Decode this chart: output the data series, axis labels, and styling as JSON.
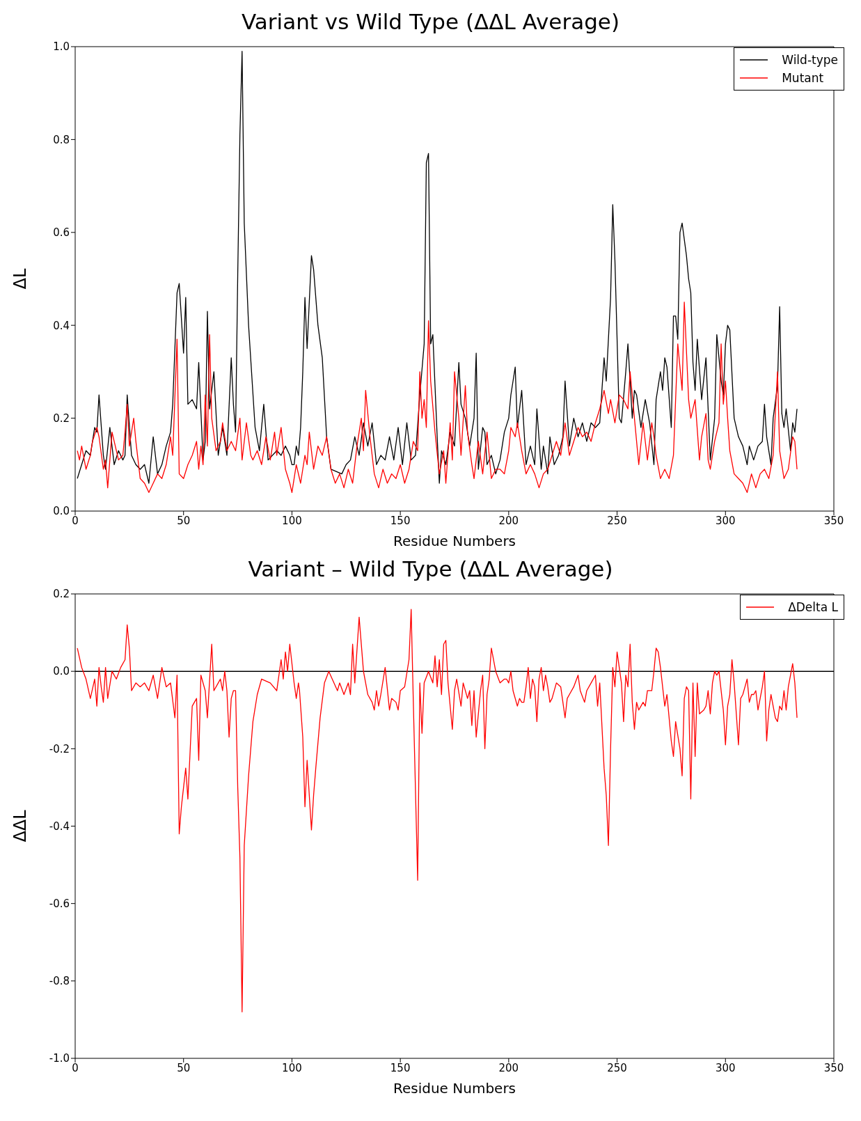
{
  "chart_data": [
    {
      "type": "line",
      "title": "Variant vs Wild Type (ΔΔL Average)",
      "xlabel": "Residue Numbers",
      "ylabel": "ΔL",
      "legend": "top right",
      "xlim": [
        0,
        350
      ],
      "xticks": [
        0,
        50,
        100,
        150,
        200,
        250,
        300,
        350
      ],
      "ylim": [
        0,
        1
      ],
      "yticks": [
        {
          "value": 0,
          "label": "0.0"
        },
        0.2,
        0.4,
        0.6,
        0.8,
        {
          "value": 1,
          "label": "1.0"
        }
      ],
      "series": [
        {
          "name": "Wild-type",
          "color": "#000000",
          "x": [
            1,
            3,
            5,
            7,
            9,
            10,
            11,
            13,
            14,
            16,
            18,
            20,
            22,
            23,
            24,
            26,
            28,
            30,
            32,
            34,
            36,
            38,
            40,
            42,
            44,
            45,
            47,
            48,
            50,
            51,
            52,
            54,
            56,
            57,
            59,
            60,
            61,
            62,
            64,
            66,
            68,
            70,
            72,
            73,
            74,
            75,
            76,
            77,
            78,
            80,
            83,
            85,
            87,
            89,
            93,
            95,
            97,
            99,
            100,
            101,
            102,
            103,
            104,
            105,
            106,
            107,
            109,
            110,
            112,
            114,
            116,
            118,
            123,
            125,
            127,
            129,
            131,
            133,
            135,
            137,
            139,
            141,
            143,
            145,
            147,
            149,
            151,
            153,
            155,
            157,
            159,
            161,
            162,
            163,
            164,
            165,
            167,
            168,
            169,
            171,
            173,
            175,
            177,
            178,
            180,
            182,
            184,
            185,
            186,
            188,
            189,
            190,
            192,
            194,
            196,
            198,
            200,
            201,
            203,
            204,
            206,
            208,
            210,
            212,
            213,
            215,
            216,
            218,
            219,
            221,
            223,
            225,
            226,
            228,
            230,
            232,
            234,
            236,
            238,
            240,
            242,
            244,
            245,
            247,
            248,
            249,
            251,
            252,
            254,
            255,
            257,
            258,
            259,
            261,
            263,
            265,
            267,
            268,
            270,
            271,
            272,
            273,
            275,
            276,
            277,
            278,
            279,
            280,
            282,
            283,
            284,
            285,
            286,
            287,
            289,
            291,
            293,
            295,
            296,
            298,
            299,
            300,
            301,
            302,
            304,
            306,
            308,
            309,
            310,
            311,
            313,
            315,
            317,
            318,
            319,
            321,
            322,
            324,
            325,
            326,
            327,
            328,
            330,
            331,
            332,
            333
          ],
          "values": [
            0.07,
            0.1,
            0.13,
            0.12,
            0.18,
            0.17,
            0.25,
            0.12,
            0.09,
            0.18,
            0.1,
            0.13,
            0.11,
            0.12,
            0.25,
            0.12,
            0.1,
            0.09,
            0.1,
            0.06,
            0.16,
            0.08,
            0.1,
            0.14,
            0.17,
            0.23,
            0.47,
            0.49,
            0.34,
            0.46,
            0.23,
            0.24,
            0.22,
            0.32,
            0.11,
            0.15,
            0.43,
            0.22,
            0.3,
            0.12,
            0.18,
            0.12,
            0.33,
            0.23,
            0.17,
            0.51,
            0.81,
            0.99,
            0.62,
            0.4,
            0.18,
            0.13,
            0.23,
            0.11,
            0.13,
            0.12,
            0.14,
            0.12,
            0.1,
            0.1,
            0.14,
            0.12,
            0.18,
            0.3,
            0.46,
            0.35,
            0.55,
            0.52,
            0.4,
            0.33,
            0.16,
            0.09,
            0.08,
            0.1,
            0.11,
            0.16,
            0.12,
            0.19,
            0.14,
            0.19,
            0.1,
            0.12,
            0.11,
            0.16,
            0.11,
            0.18,
            0.1,
            0.19,
            0.11,
            0.12,
            0.25,
            0.36,
            0.75,
            0.77,
            0.36,
            0.38,
            0.16,
            0.06,
            0.13,
            0.1,
            0.17,
            0.14,
            0.32,
            0.23,
            0.2,
            0.14,
            0.2,
            0.34,
            0.09,
            0.18,
            0.17,
            0.1,
            0.12,
            0.08,
            0.11,
            0.17,
            0.2,
            0.25,
            0.31,
            0.18,
            0.26,
            0.1,
            0.14,
            0.1,
            0.22,
            0.09,
            0.14,
            0.08,
            0.16,
            0.1,
            0.12,
            0.16,
            0.28,
            0.14,
            0.2,
            0.16,
            0.19,
            0.15,
            0.19,
            0.18,
            0.19,
            0.33,
            0.28,
            0.46,
            0.66,
            0.54,
            0.2,
            0.19,
            0.3,
            0.36,
            0.2,
            0.26,
            0.25,
            0.18,
            0.24,
            0.19,
            0.1,
            0.24,
            0.3,
            0.26,
            0.33,
            0.31,
            0.18,
            0.42,
            0.42,
            0.37,
            0.6,
            0.62,
            0.55,
            0.5,
            0.47,
            0.32,
            0.26,
            0.37,
            0.24,
            0.33,
            0.11,
            0.2,
            0.38,
            0.28,
            0.25,
            0.36,
            0.4,
            0.39,
            0.2,
            0.16,
            0.14,
            0.12,
            0.1,
            0.14,
            0.11,
            0.14,
            0.15,
            0.23,
            0.16,
            0.1,
            0.2,
            0.27,
            0.44,
            0.21,
            0.18,
            0.22,
            0.13,
            0.19,
            0.17,
            0.22
          ]
        },
        {
          "name": "Mutant",
          "color": "#ff0000",
          "x": [
            1,
            2,
            3,
            5,
            7,
            8,
            10,
            11,
            13,
            14,
            15,
            17,
            18,
            20,
            22,
            23,
            24,
            25,
            27,
            28,
            30,
            32,
            34,
            36,
            38,
            40,
            42,
            44,
            45,
            47,
            48,
            50,
            52,
            54,
            56,
            57,
            58,
            59,
            60,
            61,
            62,
            63,
            65,
            67,
            68,
            70,
            72,
            74,
            76,
            77,
            79,
            81,
            82,
            84,
            86,
            88,
            90,
            92,
            93,
            95,
            97,
            99,
            100,
            102,
            104,
            106,
            107,
            108,
            110,
            112,
            114,
            116,
            118,
            120,
            122,
            124,
            126,
            128,
            130,
            132,
            133,
            134,
            136,
            138,
            140,
            142,
            144,
            146,
            148,
            150,
            152,
            154,
            156,
            158,
            159,
            160,
            161,
            162,
            163,
            164,
            166,
            168,
            170,
            171,
            173,
            174,
            175,
            177,
            178,
            180,
            181,
            183,
            184,
            186,
            188,
            190,
            192,
            194,
            196,
            198,
            200,
            201,
            203,
            204,
            206,
            208,
            210,
            212,
            214,
            216,
            218,
            220,
            222,
            224,
            226,
            228,
            230,
            232,
            234,
            236,
            238,
            240,
            242,
            244,
            246,
            247,
            249,
            251,
            253,
            255,
            256,
            258,
            260,
            262,
            264,
            266,
            267,
            268,
            270,
            272,
            274,
            276,
            278,
            280,
            281,
            283,
            284,
            286,
            288,
            289,
            291,
            292,
            293,
            295,
            297,
            298,
            299,
            300,
            301,
            302,
            304,
            306,
            308,
            310,
            312,
            314,
            316,
            318,
            320,
            322,
            324,
            325,
            327,
            329,
            331,
            332,
            333
          ],
          "values": [
            0.13,
            0.11,
            0.14,
            0.09,
            0.12,
            0.15,
            0.18,
            0.16,
            0.09,
            0.11,
            0.05,
            0.17,
            0.15,
            0.11,
            0.12,
            0.17,
            0.23,
            0.14,
            0.2,
            0.15,
            0.07,
            0.06,
            0.04,
            0.06,
            0.08,
            0.07,
            0.1,
            0.16,
            0.12,
            0.37,
            0.08,
            0.07,
            0.1,
            0.12,
            0.15,
            0.09,
            0.14,
            0.1,
            0.25,
            0.14,
            0.38,
            0.2,
            0.13,
            0.15,
            0.19,
            0.13,
            0.15,
            0.13,
            0.2,
            0.11,
            0.19,
            0.12,
            0.11,
            0.13,
            0.1,
            0.16,
            0.11,
            0.17,
            0.12,
            0.18,
            0.09,
            0.06,
            0.04,
            0.1,
            0.06,
            0.12,
            0.1,
            0.17,
            0.09,
            0.14,
            0.12,
            0.16,
            0.09,
            0.06,
            0.08,
            0.05,
            0.09,
            0.06,
            0.14,
            0.2,
            0.13,
            0.26,
            0.16,
            0.08,
            0.05,
            0.09,
            0.06,
            0.08,
            0.07,
            0.1,
            0.06,
            0.09,
            0.15,
            0.13,
            0.3,
            0.2,
            0.24,
            0.18,
            0.41,
            0.28,
            0.17,
            0.08,
            0.13,
            0.06,
            0.19,
            0.11,
            0.3,
            0.2,
            0.12,
            0.27,
            0.17,
            0.1,
            0.07,
            0.15,
            0.08,
            0.17,
            0.07,
            0.09,
            0.09,
            0.08,
            0.13,
            0.18,
            0.16,
            0.19,
            0.13,
            0.08,
            0.1,
            0.08,
            0.05,
            0.08,
            0.09,
            0.12,
            0.15,
            0.12,
            0.19,
            0.12,
            0.15,
            0.18,
            0.16,
            0.17,
            0.15,
            0.19,
            0.22,
            0.26,
            0.21,
            0.24,
            0.19,
            0.25,
            0.24,
            0.22,
            0.3,
            0.2,
            0.1,
            0.19,
            0.11,
            0.19,
            0.16,
            0.12,
            0.07,
            0.09,
            0.07,
            0.12,
            0.36,
            0.26,
            0.45,
            0.24,
            0.2,
            0.24,
            0.11,
            0.16,
            0.21,
            0.11,
            0.09,
            0.15,
            0.19,
            0.36,
            0.23,
            0.28,
            0.2,
            0.13,
            0.08,
            0.07,
            0.06,
            0.04,
            0.08,
            0.05,
            0.08,
            0.09,
            0.07,
            0.12,
            0.3,
            0.13,
            0.07,
            0.09,
            0.16,
            0.15,
            0.09
          ]
        }
      ]
    },
    {
      "type": "line",
      "title": "Variant – Wild Type (ΔΔL Average)",
      "xlabel": "Residue Numbers",
      "ylabel": "ΔΔL",
      "legend": "top right",
      "xlim": [
        0,
        350
      ],
      "xticks": [
        0,
        50,
        100,
        150,
        200,
        250,
        300,
        350
      ],
      "ylim": [
        -1,
        0.2
      ],
      "yticks": [
        {
          "value": -1,
          "label": "-1.0"
        },
        -0.8,
        -0.6,
        -0.4,
        -0.2,
        {
          "value": 0,
          "label": "0.0"
        },
        0.2
      ],
      "ref_lines": [
        {
          "axis": "y",
          "value": 0,
          "color": "#000000"
        }
      ],
      "series": [
        {
          "name": "ΔDelta L",
          "color": "#ff0000",
          "x": [
            1,
            3,
            5,
            7,
            9,
            10,
            11,
            12,
            13,
            14,
            15,
            17,
            19,
            21,
            23,
            24,
            25,
            26,
            28,
            30,
            32,
            34,
            36,
            38,
            40,
            42,
            44,
            46,
            47,
            48,
            49,
            51,
            52,
            54,
            56,
            57,
            58,
            60,
            61,
            63,
            64,
            66,
            67,
            68,
            69,
            70,
            71,
            72,
            73,
            74,
            75,
            76,
            77,
            78,
            80,
            82,
            84,
            86,
            90,
            93,
            95,
            96,
            97,
            98,
            99,
            101,
            102,
            103,
            103.5,
            104,
            105,
            106,
            107,
            109,
            110,
            111,
            113,
            115,
            117,
            121,
            122,
            124,
            126,
            127,
            128,
            129,
            131,
            133,
            135,
            137,
            138,
            139,
            140,
            141,
            143,
            145,
            146,
            148,
            149,
            150,
            152,
            154,
            155,
            156,
            158,
            159,
            160,
            161,
            163,
            165,
            166,
            167,
            168,
            169,
            170,
            171,
            172,
            174,
            175,
            176,
            178,
            179,
            181,
            182,
            183,
            184,
            185,
            187,
            188,
            189,
            190,
            191,
            192,
            194,
            196,
            198,
            199,
            200,
            201,
            202,
            204,
            205,
            206,
            207,
            208,
            209,
            210,
            211,
            212,
            213,
            214,
            215,
            216,
            217,
            218,
            219,
            220,
            222,
            224,
            226,
            227,
            228,
            230,
            232,
            233,
            235,
            236,
            238,
            240,
            241,
            242,
            244,
            245,
            246,
            247,
            248,
            249,
            250,
            252,
            253,
            254,
            255,
            256,
            257,
            258,
            259,
            260,
            262,
            263,
            264,
            266,
            267,
            268,
            269,
            270,
            272,
            273,
            275,
            276,
            277,
            279,
            280,
            281,
            282,
            283,
            284,
            285,
            286,
            287,
            288,
            290,
            291,
            292,
            293,
            294,
            295,
            296,
            297,
            299,
            300,
            301,
            302,
            303,
            304,
            306,
            307,
            308,
            309,
            310,
            311,
            312,
            313,
            314,
            315,
            317,
            318,
            319,
            320,
            321,
            323,
            324,
            325,
            326,
            327,
            328,
            329,
            331,
            332,
            333
          ],
          "values": [
            0.06,
            0.01,
            -0.02,
            -0.07,
            -0.02,
            -0.09,
            0.01,
            -0.04,
            -0.08,
            0.01,
            -0.07,
            0.0,
            -0.02,
            0.01,
            0.03,
            0.12,
            0.06,
            -0.05,
            -0.03,
            -0.04,
            -0.03,
            -0.05,
            -0.01,
            -0.07,
            0.01,
            -0.04,
            -0.03,
            -0.12,
            -0.01,
            -0.42,
            -0.35,
            -0.25,
            -0.33,
            -0.09,
            -0.07,
            -0.23,
            -0.01,
            -0.05,
            -0.12,
            0.07,
            -0.05,
            -0.03,
            -0.02,
            -0.05,
            0.0,
            -0.05,
            -0.17,
            -0.07,
            -0.05,
            -0.05,
            -0.3,
            -0.48,
            -0.88,
            -0.45,
            -0.27,
            -0.13,
            -0.06,
            -0.02,
            -0.03,
            -0.05,
            0.03,
            -0.02,
            0.05,
            0.0,
            0.07,
            -0.03,
            -0.07,
            -0.03,
            -0.05,
            -0.09,
            -0.17,
            -0.35,
            -0.23,
            -0.41,
            -0.32,
            -0.25,
            -0.12,
            -0.03,
            0.0,
            -0.05,
            -0.03,
            -0.06,
            -0.03,
            -0.06,
            0.07,
            -0.03,
            0.14,
            0.0,
            -0.06,
            -0.08,
            -0.1,
            -0.05,
            -0.09,
            -0.06,
            0.01,
            -0.1,
            -0.07,
            -0.08,
            -0.1,
            -0.05,
            -0.04,
            0.03,
            0.16,
            -0.08,
            -0.54,
            -0.03,
            -0.16,
            -0.03,
            0.0,
            -0.03,
            0.04,
            -0.04,
            0.03,
            -0.06,
            0.07,
            0.08,
            -0.03,
            -0.15,
            -0.05,
            -0.02,
            -0.09,
            -0.03,
            -0.07,
            -0.05,
            -0.14,
            -0.05,
            -0.17,
            -0.05,
            -0.01,
            -0.2,
            -0.06,
            -0.02,
            0.06,
            0.0,
            -0.03,
            -0.02,
            -0.02,
            -0.03,
            0.0,
            -0.05,
            -0.09,
            -0.07,
            -0.08,
            -0.08,
            -0.04,
            0.01,
            -0.07,
            -0.02,
            -0.04,
            -0.13,
            -0.02,
            0.01,
            -0.05,
            -0.01,
            -0.04,
            -0.08,
            -0.07,
            -0.03,
            -0.04,
            -0.12,
            -0.07,
            -0.06,
            -0.04,
            -0.01,
            -0.05,
            -0.08,
            -0.05,
            -0.03,
            -0.01,
            -0.09,
            -0.03,
            -0.25,
            -0.32,
            -0.45,
            -0.2,
            0.01,
            -0.04,
            0.05,
            -0.03,
            -0.13,
            -0.01,
            -0.04,
            0.07,
            -0.08,
            -0.15,
            -0.08,
            -0.1,
            -0.08,
            -0.09,
            -0.05,
            -0.05,
            0.0,
            0.06,
            0.05,
            0.01,
            -0.09,
            -0.06,
            -0.18,
            -0.22,
            -0.13,
            -0.2,
            -0.27,
            -0.07,
            -0.04,
            -0.05,
            -0.33,
            -0.03,
            -0.22,
            -0.03,
            -0.11,
            -0.1,
            -0.09,
            -0.05,
            -0.11,
            -0.03,
            0.0,
            -0.01,
            0.0,
            -0.1,
            -0.19,
            -0.09,
            -0.06,
            0.03,
            -0.03,
            -0.19,
            -0.07,
            -0.06,
            -0.04,
            -0.02,
            -0.08,
            -0.06,
            -0.06,
            -0.05,
            -0.1,
            -0.04,
            0.0,
            -0.18,
            -0.1,
            -0.06,
            -0.12,
            -0.13,
            -0.09,
            -0.1,
            -0.05,
            -0.1,
            -0.04,
            0.02,
            -0.03,
            -0.12
          ]
        }
      ]
    }
  ]
}
